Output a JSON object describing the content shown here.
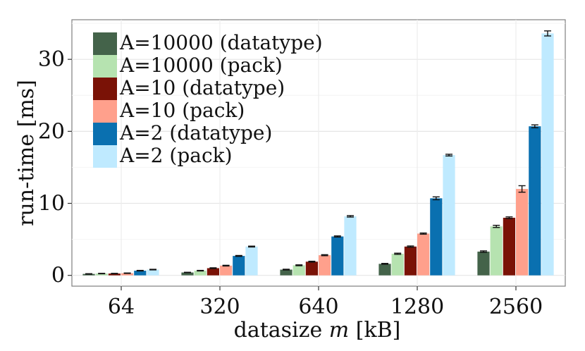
{
  "chart_data": {
    "type": "bar",
    "title": "",
    "xlabel": "datasize m [kB]",
    "xlabel_parts": {
      "prefix": "datasize ",
      "variable": "m",
      "suffix": " [kB]"
    },
    "ylabel": "run-time [ms]",
    "ylim": [
      -1.5,
      35.5
    ],
    "yticks": [
      0,
      10,
      20,
      30
    ],
    "grid": true,
    "legend_position": "top-left",
    "categories": [
      "64",
      "320",
      "640",
      "1280",
      "2560"
    ],
    "series": [
      {
        "name": "A=10000 (datatype)",
        "color": "#44634a",
        "values": [
          0.2,
          0.4,
          0.8,
          1.6,
          3.3
        ],
        "errors": [
          0.03,
          0.03,
          0.05,
          0.06,
          0.1
        ]
      },
      {
        "name": "A=10000 (pack)",
        "color": "#b6e3b0",
        "values": [
          0.25,
          0.65,
          1.4,
          3.0,
          6.8
        ],
        "errors": [
          0.03,
          0.04,
          0.06,
          0.08,
          0.15
        ]
      },
      {
        "name": "A=10 (datatype)",
        "color": "#7a1206",
        "values": [
          0.25,
          1.0,
          1.9,
          4.0,
          8.0
        ],
        "errors": [
          0.03,
          0.05,
          0.06,
          0.08,
          0.12
        ]
      },
      {
        "name": "A=10 (pack)",
        "color": "#ffa08c",
        "values": [
          0.3,
          1.35,
          2.8,
          5.8,
          12.0
        ],
        "errors": [
          0.03,
          0.05,
          0.07,
          0.08,
          0.45
        ]
      },
      {
        "name": "A=2 (datatype)",
        "color": "#0a70b0",
        "values": [
          0.65,
          2.7,
          5.4,
          10.7,
          20.7
        ],
        "errors": [
          0.04,
          0.06,
          0.08,
          0.2,
          0.2
        ]
      },
      {
        "name": "A=2 (pack)",
        "color": "#bfeaff",
        "values": [
          0.8,
          4.0,
          8.2,
          16.7,
          33.6
        ],
        "errors": [
          0.04,
          0.06,
          0.1,
          0.12,
          0.35
        ]
      }
    ]
  }
}
